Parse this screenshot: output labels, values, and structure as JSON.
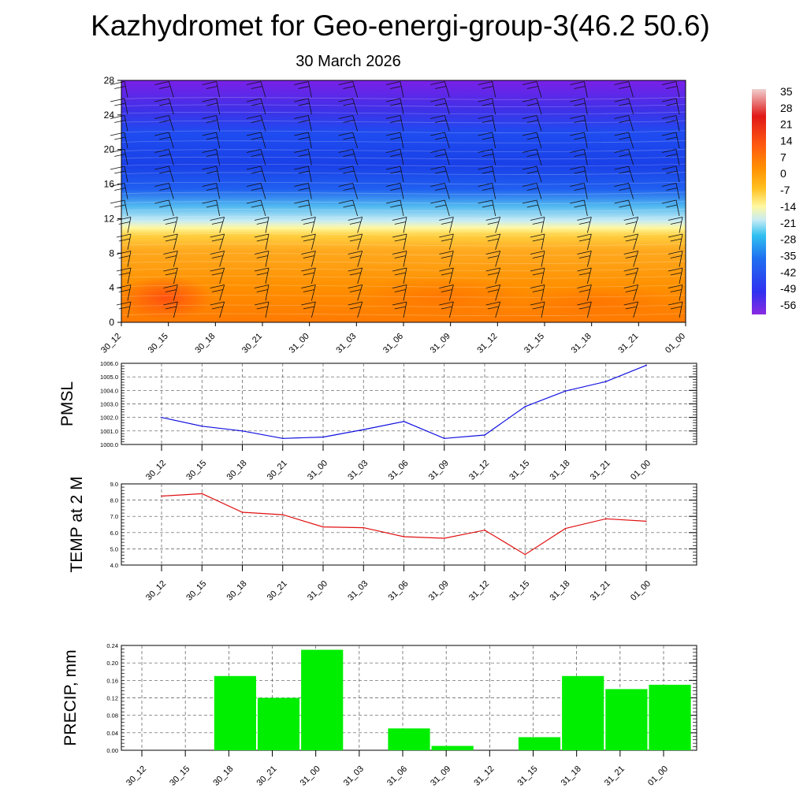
{
  "title": "Kazhydromet for Geo-energi-group-3(46.2 50.6)",
  "subtitle": "30 March 2026",
  "chart_data": [
    {
      "type": "heatmap",
      "name": "temperature-cross-section",
      "x_labels": [
        "30_12",
        "30_15",
        "30_18",
        "30_21",
        "31_00",
        "31_03",
        "31_06",
        "31_09",
        "31_12",
        "31_15",
        "31_18",
        "31_21",
        "01_00"
      ],
      "y_ticks": [
        0,
        4,
        8,
        12,
        16,
        20,
        24,
        28
      ],
      "ylim": [
        0,
        28
      ],
      "colorbar_labels": [
        "35",
        "28",
        "21",
        "14",
        "7",
        "0",
        "-7",
        "-14",
        "-21",
        "-28",
        "-35",
        "-42",
        "-49",
        "-56"
      ],
      "colors": {
        "cold": "#6a1fe8",
        "mid": "#fff8a0",
        "warm": "#ff8c00",
        "hot": "#ff3a10"
      },
      "wind_barbs": true
    },
    {
      "type": "line",
      "name": "pmsl",
      "ylabel": "PMSL",
      "categories": [
        "30_12",
        "30_15",
        "30_18",
        "30_21",
        "31_00",
        "31_03",
        "31_06",
        "31_09",
        "31_12",
        "31_15",
        "31_18",
        "31_21",
        "01_00"
      ],
      "values": [
        1002.0,
        1001.35,
        1001.0,
        1000.45,
        1000.55,
        1001.1,
        1001.7,
        1000.45,
        1000.7,
        1002.8,
        1003.95,
        1004.65,
        1005.85
      ],
      "ylim": [
        1000.0,
        1006.0
      ],
      "y_ticks": [
        "1000.0",
        "1001.0",
        "1002.0",
        "1003.0",
        "1004.0",
        "1005.0",
        "1006.0"
      ],
      "color": "#1010e0"
    },
    {
      "type": "line",
      "name": "temp-2m",
      "ylabel": "TEMP at 2 M",
      "categories": [
        "30_12",
        "30_15",
        "30_18",
        "30_21",
        "31_00",
        "31_03",
        "31_06",
        "31_09",
        "31_12",
        "31_15",
        "31_18",
        "31_21",
        "01_00"
      ],
      "values": [
        8.25,
        8.4,
        7.25,
        7.1,
        6.35,
        6.3,
        5.75,
        5.65,
        6.15,
        4.65,
        6.25,
        6.85,
        6.7
      ],
      "ylim": [
        4.0,
        9.0
      ],
      "y_ticks": [
        "4.0",
        "5.0",
        "6.0",
        "7.0",
        "8.0",
        "9.0"
      ],
      "color": "#e01010"
    },
    {
      "type": "bar",
      "name": "precip",
      "ylabel": "PRECIP, mm",
      "categories": [
        "30_12",
        "30_15",
        "30_18",
        "30_21",
        "31_00",
        "31_03",
        "31_06",
        "31_09",
        "31_12",
        "31_15",
        "31_18",
        "31_21",
        "01_00"
      ],
      "values": [
        0,
        0,
        0.17,
        0.12,
        0.23,
        0,
        0.05,
        0.01,
        0,
        0.03,
        0.17,
        0.14,
        0.15
      ],
      "ylim": [
        0,
        0.24
      ],
      "y_ticks": [
        "0.00",
        "0.04",
        "0.08",
        "0.12",
        "0.16",
        "0.20",
        "0.24"
      ],
      "color": "#00ee00"
    }
  ]
}
